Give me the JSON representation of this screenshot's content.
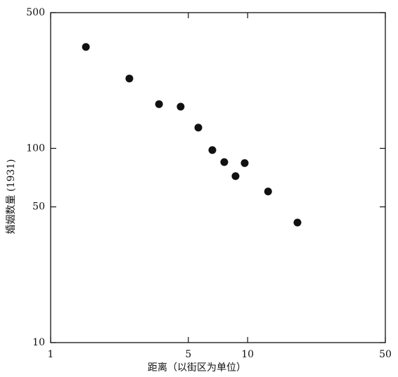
{
  "chart_data": {
    "type": "scatter",
    "x_label": "距离（以街区为单位）",
    "y_label": "婚姻数量 (1931)",
    "x": [
      1.51,
      2.51,
      3.55,
      4.57,
      5.62,
      6.62,
      7.61,
      8.68,
      9.66,
      12.7,
      17.9
    ],
    "values": [
      333,
      229,
      169,
      164,
      128,
      98,
      85,
      72,
      84,
      60,
      41.5
    ],
    "color": "#111111",
    "x_log": true,
    "y_log": true,
    "xlim": [
      1,
      50
    ],
    "xticks": [
      1,
      5,
      10,
      50
    ],
    "ylim": [
      10,
      500
    ],
    "yticks": [
      10,
      50,
      100,
      500
    ]
  }
}
